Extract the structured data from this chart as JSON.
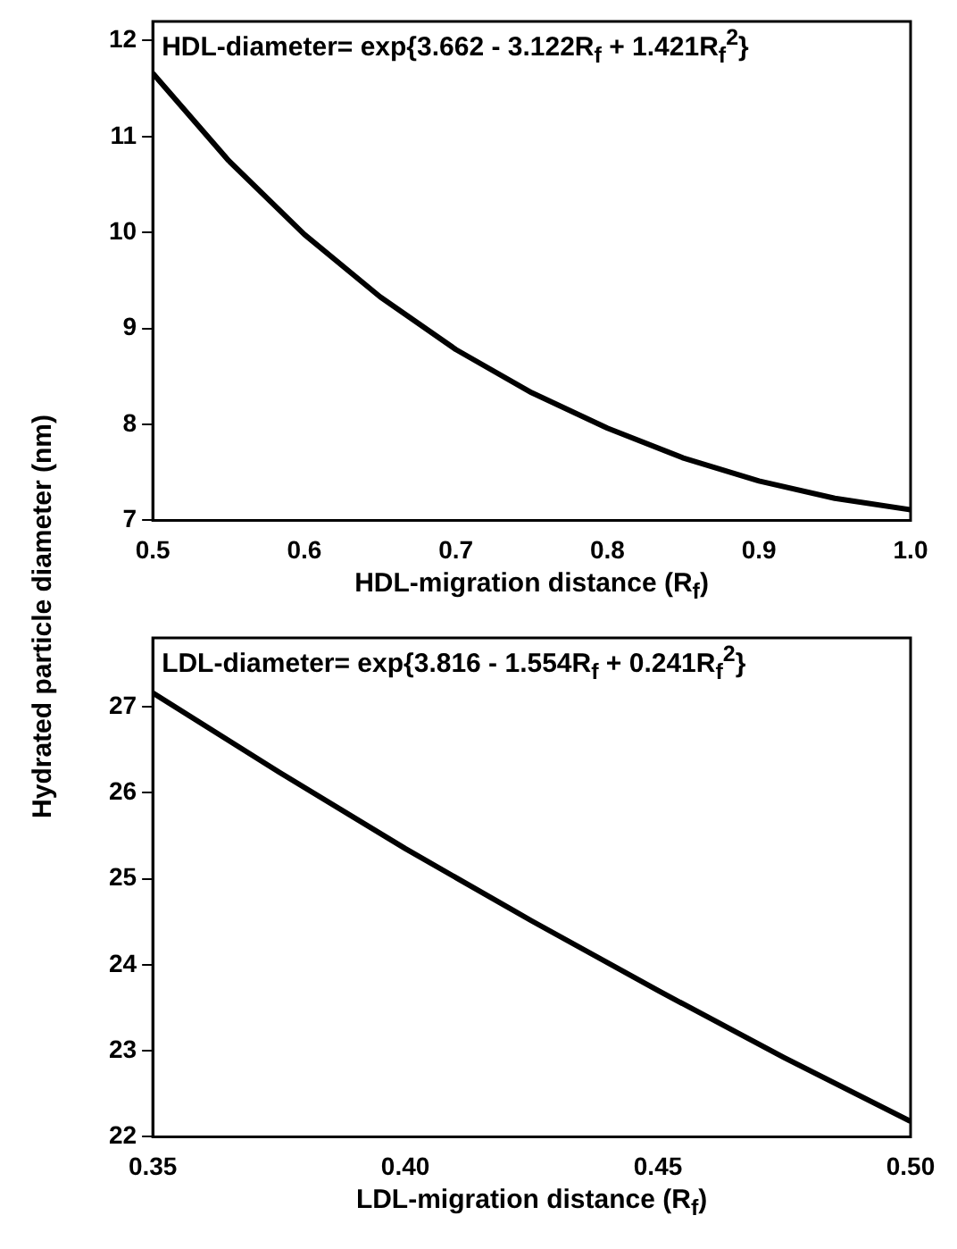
{
  "chart_data": [
    {
      "type": "line",
      "xlabel": "HDL-migration distance (R$_{f}$)",
      "ylabel": "Hydrated particle diameter (nm)",
      "annotations": [
        "HDL-diameter= exp{3.662 - 3.122R$_{f}$ + 1.421R$_{f}$$^{2}$}"
      ],
      "x": [
        0.5,
        0.55,
        0.6,
        0.65,
        0.7,
        0.75,
        0.8,
        0.85,
        0.9,
        0.95,
        1.0
      ],
      "series": [
        {
          "color": "#000000",
          "values": [
            11.66,
            10.75,
            9.98,
            9.33,
            8.78,
            8.33,
            7.96,
            7.65,
            7.41,
            7.23,
            7.11
          ]
        }
      ],
      "xlim": [
        0.5,
        1.0
      ],
      "xticks": [
        0.5,
        0.6,
        0.7,
        0.8,
        0.9,
        {
          "value": 1.0,
          "label": "1.0"
        }
      ],
      "ylim": [
        7,
        12.2
      ],
      "yticks": [
        7,
        8,
        9,
        10,
        11,
        12
      ],
      "grid": false,
      "legend": false,
      "marker": "none",
      "line_style": "solid"
    },
    {
      "type": "line",
      "xlabel": "LDL-migration distance (R$_{f}$)",
      "annotations": [
        "LDL-diameter= exp{3.816 - 1.554R$_{f}$ + 0.241R$_{f}$$^{2}$}"
      ],
      "x": [
        0.35,
        0.375,
        0.4,
        0.425,
        0.45,
        0.475,
        0.5
      ],
      "series": [
        {
          "color": "#000000",
          "values": [
            27.16,
            26.24,
            25.35,
            24.51,
            23.7,
            22.92,
            22.18
          ]
        }
      ],
      "xlim": [
        0.35,
        0.5
      ],
      "xticks": [
        0.35,
        {
          "value": 0.4,
          "label": "0.40"
        },
        0.45,
        {
          "value": 0.5,
          "label": "0.50"
        }
      ],
      "ylim": [
        22,
        27.8
      ],
      "yticks": [
        22,
        23,
        24,
        25,
        26,
        27
      ],
      "grid": false,
      "legend": false,
      "marker": "none",
      "line_style": "solid"
    }
  ]
}
